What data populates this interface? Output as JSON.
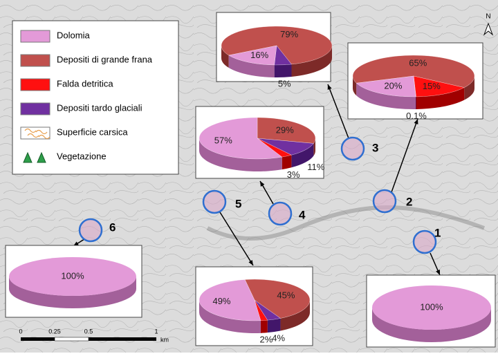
{
  "north": "N",
  "legend": [
    {
      "label": "Dolomia",
      "color": "#e39ad8"
    },
    {
      "label": "Depositi di grande frana",
      "color": "#c0504d"
    },
    {
      "label": "Falda detritica",
      "color": "#ff1010"
    },
    {
      "label": "Depositi tardo glaciali",
      "color": "#7030a0"
    },
    {
      "label": "Superficie carsica"
    },
    {
      "label": "Vegetazione"
    }
  ],
  "sites": [
    {
      "label": "1",
      "pie": [
        {
          "value": 100,
          "label": "100%",
          "color": "#e39ad8"
        }
      ]
    },
    {
      "label": "2",
      "pie": [
        {
          "value": 65,
          "label": "65%",
          "color": "#c0504d"
        },
        {
          "value": 15,
          "label": "15%",
          "color": "#ff1010"
        },
        {
          "value": 0.1,
          "label": "0.1%",
          "color": "#7030a0"
        },
        {
          "value": 20,
          "label": "20%",
          "color": "#e39ad8"
        }
      ]
    },
    {
      "label": "3",
      "pie": [
        {
          "value": 79,
          "label": "79%",
          "color": "#c0504d"
        },
        {
          "value": 5,
          "label": "5%",
          "color": "#7030a0"
        },
        {
          "value": 16,
          "label": "16%",
          "color": "#e39ad8"
        }
      ]
    },
    {
      "label": "4",
      "pie": [
        {
          "value": 29,
          "label": "29%",
          "color": "#c0504d"
        },
        {
          "value": 11,
          "label": "11%",
          "color": "#7030a0"
        },
        {
          "value": 3,
          "label": "3%",
          "color": "#ff1010"
        },
        {
          "value": 57,
          "label": "57%",
          "color": "#e39ad8"
        }
      ]
    },
    {
      "label": "5",
      "pie": [
        {
          "value": 45,
          "label": "45%",
          "color": "#c0504d"
        },
        {
          "value": 4,
          "label": "4%",
          "color": "#7030a0"
        },
        {
          "value": 2,
          "label": "2%",
          "color": "#ff1010"
        },
        {
          "value": 49,
          "label": "49%",
          "color": "#e39ad8"
        }
      ]
    },
    {
      "label": "6",
      "pie": [
        {
          "value": 100,
          "label": "100%",
          "color": "#e39ad8"
        }
      ]
    }
  ],
  "scale_bar": {
    "ticks": [
      "0",
      "0.25",
      "0.5",
      "1"
    ],
    "unit": "km"
  }
}
